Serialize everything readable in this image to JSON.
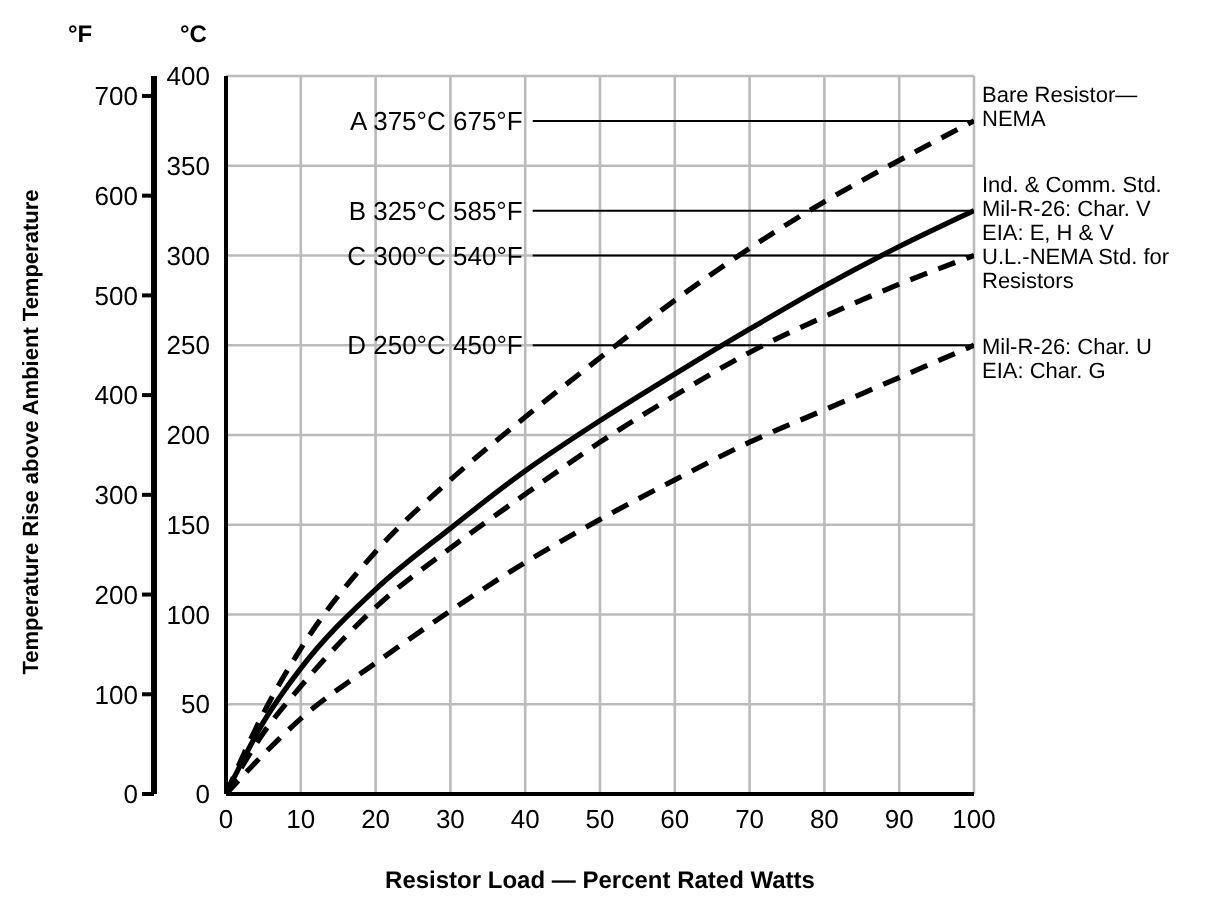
{
  "chart_data": {
    "type": "line",
    "xlabel": "Resistor Load — Percent Rated Watts",
    "ylabel": "°C",
    "y2label": "Temperature Rise above Ambient Temperature",
    "annotations": [
      "°F"
    ],
    "x": [
      0,
      5,
      10,
      20,
      30,
      40,
      50,
      60,
      70,
      80,
      90,
      100
    ],
    "series": [
      {
        "name": "Bare Resistor—NEMA",
        "color": "#000000",
        "line_style": "dashed",
        "values": [
          0,
          45,
          81,
          135,
          175,
          210,
          243,
          275,
          304,
          330,
          353,
          375
        ]
      },
      {
        "name": "Ind. & Comm. Std. Mil-R-26: Char. V EIA: E, H & V",
        "color": "#000000",
        "line_style": "solid",
        "values": [
          0,
          40,
          70,
          114,
          148,
          180,
          208,
          234,
          259,
          283,
          305,
          325
        ]
      },
      {
        "name": "U.L.-NEMA Std. for Resistors",
        "color": "#000000",
        "line_style": "dashed",
        "values": [
          0,
          34,
          60,
          104,
          137,
          167,
          196,
          222,
          246,
          266,
          284,
          300
        ]
      },
      {
        "name": "Mil-R-26: Char. U EIA: Char. G",
        "color": "#000000",
        "line_style": "dashed",
        "values": [
          0,
          22,
          42,
          73,
          102,
          129,
          153,
          175,
          196,
          214,
          232,
          250
        ]
      }
    ],
    "xlim": [
      0,
      100
    ],
    "xticks": [
      0,
      10,
      20,
      30,
      40,
      50,
      60,
      70,
      80,
      90,
      100
    ],
    "ylim": [
      0,
      400
    ],
    "yticks": [
      0,
      50,
      100,
      150,
      200,
      250,
      300,
      350,
      400
    ],
    "y2lim": [
      0,
      720
    ],
    "y2ticks": [
      0,
      100,
      200,
      300,
      400,
      500,
      600,
      700
    ],
    "ref_lines": [
      {
        "axis": "y",
        "value": 375,
        "label": "A 375°C 675°F"
      },
      {
        "axis": "y",
        "value": 325,
        "label": "B 325°C 585°F"
      },
      {
        "axis": "y",
        "value": 300,
        "label": "C 300°C 540°F"
      },
      {
        "axis": "y",
        "value": 250,
        "label": "D 250°C 450°F"
      }
    ],
    "grid": true,
    "marker": "none",
    "legend": false
  }
}
